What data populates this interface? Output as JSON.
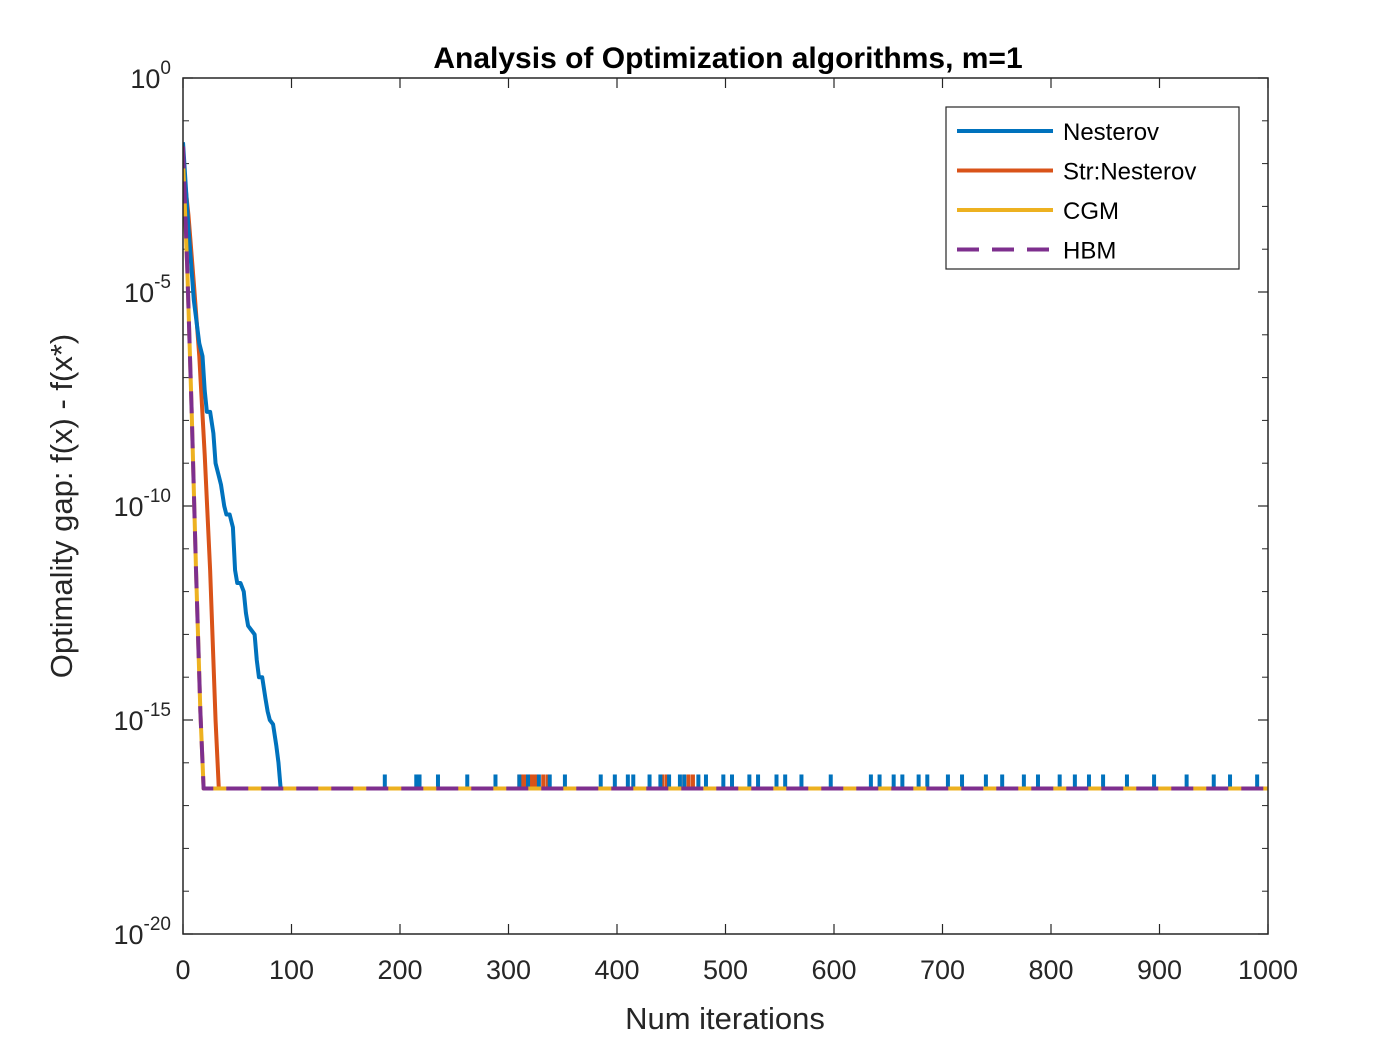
{
  "chart_data": {
    "type": "line",
    "title": "Analysis of Optimization algorithms, m=1",
    "xlabel": "Num iterations",
    "ylabel": "Optimality gap: f(x) - f(x*)",
    "xlim": [
      0,
      1000
    ],
    "ylim_log10": [
      -20,
      0
    ],
    "y_scale": "log",
    "x_ticks": [
      0,
      100,
      200,
      300,
      400,
      500,
      600,
      700,
      800,
      900,
      1000
    ],
    "y_ticks": [
      {
        "base": "10",
        "exp": "0",
        "log10": 0
      },
      {
        "base": "10",
        "exp": "-5",
        "log10": -5
      },
      {
        "base": "10",
        "exp": "-10",
        "log10": -10
      },
      {
        "base": "10",
        "exp": "-15",
        "log10": -15
      },
      {
        "base": "10",
        "exp": "-20",
        "log10": -20
      }
    ],
    "grid": false,
    "legend_position": "top-right",
    "floor_log10": -16.6,
    "series": [
      {
        "name": "Nesterov",
        "color": "#0072BD",
        "dash": "solid",
        "points_log10": [
          [
            0,
            -1.5
          ],
          [
            5,
            -3.5
          ],
          [
            10,
            -5.2
          ],
          [
            15,
            -6.2
          ],
          [
            18,
            -6.5
          ],
          [
            20,
            -7.3
          ],
          [
            22,
            -7.8
          ],
          [
            25,
            -7.8
          ],
          [
            28,
            -8.3
          ],
          [
            30,
            -9.0
          ],
          [
            33,
            -9.3
          ],
          [
            35,
            -9.5
          ],
          [
            38,
            -10.0
          ],
          [
            40,
            -10.2
          ],
          [
            43,
            -10.2
          ],
          [
            46,
            -10.5
          ],
          [
            48,
            -11.5
          ],
          [
            50,
            -11.8
          ],
          [
            53,
            -11.8
          ],
          [
            56,
            -12.0
          ],
          [
            58,
            -12.5
          ],
          [
            60,
            -12.8
          ],
          [
            63,
            -12.9
          ],
          [
            66,
            -13.0
          ],
          [
            68,
            -13.6
          ],
          [
            70,
            -14.0
          ],
          [
            73,
            -14.0
          ],
          [
            76,
            -14.5
          ],
          [
            78,
            -14.8
          ],
          [
            80,
            -15.0
          ],
          [
            83,
            -15.1
          ],
          [
            86,
            -15.6
          ],
          [
            88,
            -16.0
          ],
          [
            90,
            -16.6
          ]
        ],
        "spikes": [
          186,
          215,
          218,
          235,
          262,
          288,
          310,
          318,
          328,
          338,
          352,
          385,
          398,
          410,
          415,
          430,
          440,
          448,
          458,
          462,
          475,
          482,
          498,
          506,
          522,
          530,
          547,
          555,
          570,
          597,
          634,
          642,
          655,
          663,
          678,
          686,
          705,
          718,
          740,
          755,
          775,
          788,
          808,
          822,
          835,
          848,
          870,
          895,
          925,
          950,
          965,
          990
        ]
      },
      {
        "name": "Str:Nesterov",
        "color": "#D95319",
        "dash": "solid",
        "points_log10": [
          [
            0,
            -2.0
          ],
          [
            5,
            -3.2
          ],
          [
            10,
            -4.8
          ],
          [
            15,
            -6.5
          ],
          [
            20,
            -8.8
          ],
          [
            25,
            -11.5
          ],
          [
            30,
            -15.0
          ],
          [
            33,
            -16.6
          ]
        ],
        "spikes": [
          310,
          312,
          314,
          316,
          318,
          320,
          322,
          324,
          326,
          332,
          336,
          442,
          446,
          462,
          466,
          470
        ]
      },
      {
        "name": "CGM",
        "color": "#EDB120",
        "dash": "solid",
        "points_log10": [
          [
            0,
            -1.9
          ],
          [
            4,
            -4.5
          ],
          [
            8,
            -7.8
          ],
          [
            12,
            -11.5
          ],
          [
            16,
            -14.8
          ],
          [
            19,
            -16.6
          ],
          [
            1000,
            -16.6
          ]
        ],
        "spikes": []
      },
      {
        "name": "HBM",
        "color": "#7E2F8E",
        "dash": "dashed",
        "points_log10": [
          [
            0,
            -1.6
          ],
          [
            4,
            -4.5
          ],
          [
            8,
            -7.8
          ],
          [
            12,
            -11.5
          ],
          [
            16,
            -14.8
          ],
          [
            19,
            -16.6
          ],
          [
            1000,
            -16.6
          ]
        ],
        "spikes": []
      }
    ]
  }
}
